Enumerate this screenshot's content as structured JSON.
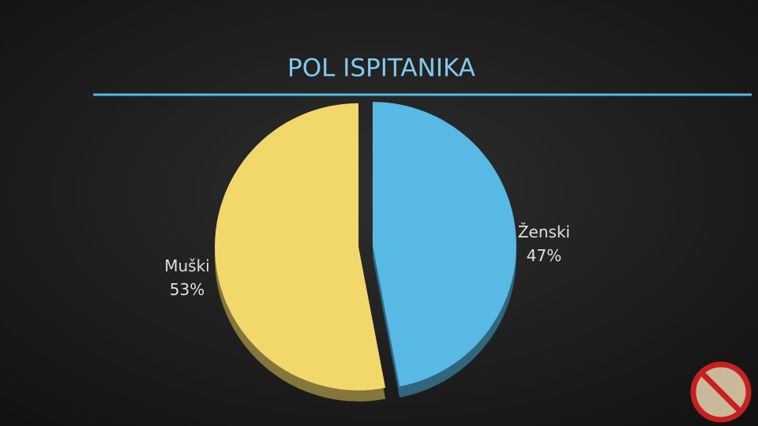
{
  "chart_data": {
    "type": "pie",
    "title": "POL ISPITANIKA",
    "categories": [
      "Ženski",
      "Muški"
    ],
    "values": [
      47,
      53
    ],
    "value_labels": [
      "47%",
      "53%"
    ],
    "colors": [
      "#58b9e5",
      "#f2d76b"
    ]
  }
}
